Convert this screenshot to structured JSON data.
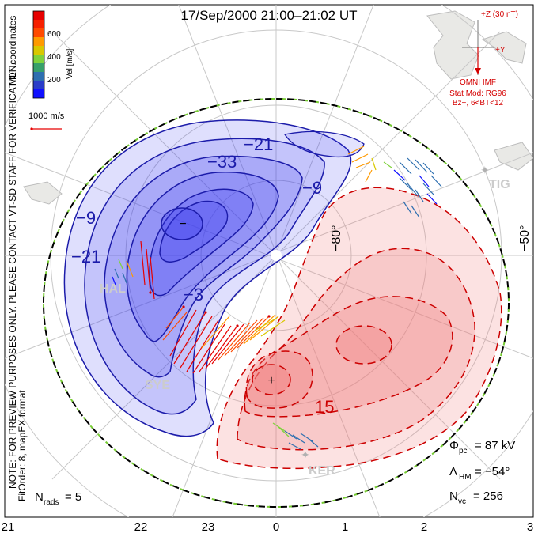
{
  "title": "17/Sep/2000  21:00–21:02  UT",
  "coordinates_note": "MLT coordinates",
  "preview_note": "NOTE: FOR PREVIEW PURPOSES ONLY. PLEASE CONTACT VT-SD STAFF FOR VERIFICATION.",
  "fit_note": "FitOrder: 8, mapEX format",
  "velocity_scale": {
    "label": "Vel [m/s]",
    "ticks": [
      "600",
      "400",
      "200"
    ],
    "colors": [
      "#e60000",
      "#ff4a00",
      "#ff9a00",
      "#d9c800",
      "#7fd23c",
      "#37a06a",
      "#2e6fb0",
      "#2a3dc8",
      "#1010ff"
    ]
  },
  "reference_vector_label": "1000 m/s",
  "imf": {
    "z_label": "+Z (30 nT)",
    "y_label": "+Y",
    "source_label": "OMNI IMF",
    "model_label": "Stat Mod: RG96",
    "condition_label": "Bz−, 6<BT<12",
    "color": "#d40000"
  },
  "latitude_labels": [
    "−80°",
    "−50°"
  ],
  "contour_labels": {
    "negative": [
      "−21",
      "−3",
      "−9",
      "−33",
      "−21",
      "−9",
      "−3"
    ],
    "positive": [
      "15"
    ]
  },
  "radars": [
    "HAL",
    "SYE",
    "KER",
    "TIG"
  ],
  "stats": {
    "phi_pc_label": "Φ",
    "phi_pc_sub": "pc",
    "phi_pc_value": "= 87 kV",
    "lambda_hm_label": "Λ",
    "lambda_hm_sub": "HM",
    "lambda_hm_value": "= −54°",
    "n_vc_label": "N",
    "n_vc_sub": "vc",
    "n_vc_value": "= 256",
    "n_rads_label": "N",
    "n_rads_sub": "rads",
    "n_rads_value": "= 5"
  },
  "mlt_labels": [
    "21",
    "22",
    "23",
    "0",
    "1",
    "2",
    "3"
  ],
  "cell_markers": {
    "min": "−",
    "max": "+"
  },
  "colors": {
    "negative_fill": "#3a3af0",
    "positive_fill": "#f07a7a",
    "negative_line": "#1c1caa",
    "positive_line": "#cc0000",
    "boundary_green": "#77cc33"
  }
}
